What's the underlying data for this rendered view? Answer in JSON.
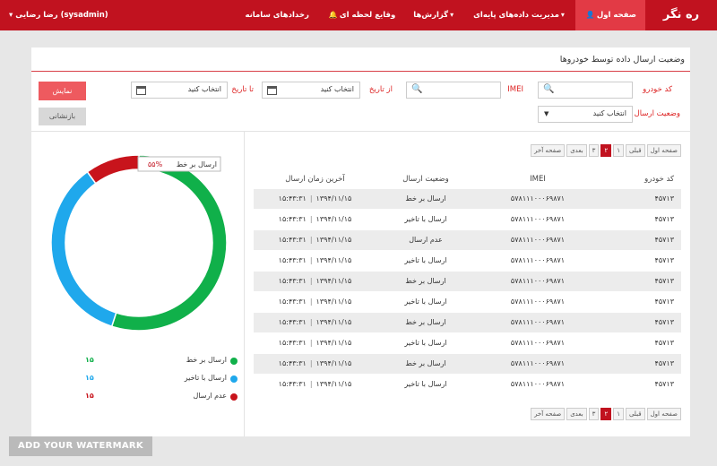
{
  "header": {
    "brand": "ره نگر",
    "nav": [
      {
        "label": "صفحه اول",
        "icon": "user-icon",
        "icon_glyph": "👤",
        "active": true,
        "dropdown": false
      },
      {
        "label": "مدیریت داده‌های پایه‌ای",
        "icon": "chevron-down-icon",
        "icon_glyph": "▾",
        "active": false,
        "dropdown": true
      },
      {
        "label": "گزارش‌ها",
        "icon": "chevron-down-icon",
        "icon_glyph": "▾",
        "active": false,
        "dropdown": true
      },
      {
        "label": "وقایع لحظه ای",
        "icon": "bell-icon",
        "icon_glyph": "🔔",
        "active": false,
        "dropdown": false
      },
      {
        "label": "رخدادهای سامانه",
        "icon": "",
        "icon_glyph": "",
        "active": false,
        "dropdown": false
      }
    ],
    "user": "رضا رضایی (sysadmin)",
    "user_caret": "▾"
  },
  "panel": {
    "title": "وضعیت ارسال داده توسط خودروها"
  },
  "filters": {
    "vehicle_code_label": "کد خودرو",
    "imei_label": "IMEI",
    "from_date_label": "از تاریخ",
    "to_date_label": "تا تاریخ",
    "date_placeholder": "انتخاب کنید",
    "send_status_label": "وضعیت ارسال",
    "send_status_value": "انتخاب کنید",
    "show_button": "نمایش",
    "reset_button": "بازنشانی",
    "search_glyph": "🔍",
    "caret_glyph": "▼"
  },
  "pager": {
    "items": [
      {
        "label": "صفحه اول",
        "current": false
      },
      {
        "label": "قبلی",
        "current": false
      },
      {
        "label": "۱",
        "current": false
      },
      {
        "label": "۲",
        "current": true
      },
      {
        "label": "۳",
        "current": false
      },
      {
        "label": "بعدی",
        "current": false
      },
      {
        "label": "صفحه آخر",
        "current": false
      }
    ]
  },
  "table": {
    "headers": {
      "code": "کد خودرو",
      "imei": "IMEI",
      "status": "وضعیت ارسال",
      "time": "آخرین زمان ارسال"
    },
    "rows": [
      {
        "code": "۴۵۷۱۳",
        "imei": "۵۷۸۱۱۱۰۰۰۶۹۸۷۱",
        "status": "ارسال بر خط",
        "time": "۱۵:۴۳:۳۱",
        "date": "۱۳۹۴/۱۱/۱۵"
      },
      {
        "code": "۴۵۷۱۳",
        "imei": "۵۷۸۱۱۱۰۰۰۶۹۸۷۱",
        "status": "ارسال با تاخیر",
        "time": "۱۵:۴۳:۳۱",
        "date": "۱۳۹۴/۱۱/۱۵"
      },
      {
        "code": "۴۵۷۱۳",
        "imei": "۵۷۸۱۱۱۰۰۰۶۹۸۷۱",
        "status": "عدم ارسال",
        "time": "۱۵:۴۳:۳۱",
        "date": "۱۳۹۴/۱۱/۱۵"
      },
      {
        "code": "۴۵۷۱۳",
        "imei": "۵۷۸۱۱۱۰۰۰۶۹۸۷۱",
        "status": "ارسال با تاخیر",
        "time": "۱۵:۴۳:۳۱",
        "date": "۱۳۹۴/۱۱/۱۵"
      },
      {
        "code": "۴۵۷۱۳",
        "imei": "۵۷۸۱۱۱۰۰۰۶۹۸۷۱",
        "status": "ارسال بر خط",
        "time": "۱۵:۴۳:۳۱",
        "date": "۱۳۹۴/۱۱/۱۵"
      },
      {
        "code": "۴۵۷۱۳",
        "imei": "۵۷۸۱۱۱۰۰۰۶۹۸۷۱",
        "status": "ارسال با تاخیر",
        "time": "۱۵:۴۳:۳۱",
        "date": "۱۳۹۴/۱۱/۱۵"
      },
      {
        "code": "۴۵۷۱۳",
        "imei": "۵۷۸۱۱۱۰۰۰۶۹۸۷۱",
        "status": "ارسال بر خط",
        "time": "۱۵:۴۳:۳۱",
        "date": "۱۳۹۴/۱۱/۱۵"
      },
      {
        "code": "۴۵۷۱۳",
        "imei": "۵۷۸۱۱۱۰۰۰۶۹۸۷۱",
        "status": "ارسال با تاخیر",
        "time": "۱۵:۴۳:۳۱",
        "date": "۱۳۹۴/۱۱/۱۵"
      },
      {
        "code": "۴۵۷۱۳",
        "imei": "۵۷۸۱۱۱۰۰۰۶۹۸۷۱",
        "status": "ارسال بر خط",
        "time": "۱۵:۴۳:۳۱",
        "date": "۱۳۹۴/۱۱/۱۵"
      },
      {
        "code": "۴۵۷۱۳",
        "imei": "۵۷۸۱۱۱۰۰۰۶۹۸۷۱",
        "status": "ارسال با تاخیر",
        "time": "۱۵:۴۳:۳۱",
        "date": "۱۳۹۴/۱۱/۱۵"
      }
    ]
  },
  "chart_data": {
    "type": "pie",
    "donut": true,
    "categories": [
      "ارسال بر خط",
      "ارسال با تاخیر",
      "عدم ارسال"
    ],
    "values": [
      55,
      35,
      10
    ],
    "colors": [
      "#10b04a",
      "#1fa8ec",
      "#c8141c"
    ],
    "tooltip": {
      "label": "ارسال بر خط",
      "value": "۵۵%"
    },
    "legend_values": [
      "۱۵",
      "۱۵",
      "۱۵"
    ],
    "legend_value_colors": [
      "#10b04a",
      "#1fa8ec",
      "#c8141c"
    ],
    "legend_position": "bottom"
  },
  "watermark": "ADD YOUR WATERMARK",
  "colors": {
    "primary": "#c1121f",
    "active_nav": "#e23a45",
    "show_button": "#ee5a5f"
  }
}
